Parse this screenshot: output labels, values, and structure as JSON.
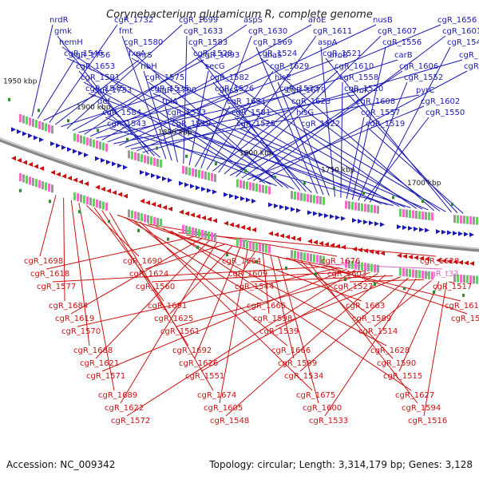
{
  "title": "Corynebacterium glutamicum R, complete genome",
  "footer": {
    "accession": "Accession: NC_009342",
    "summary": "Topology: circular; Length: 3,314,179 bp; Genes: 3,128"
  },
  "scale_labels": [
    "1950 kbp",
    "1900 kbp",
    "1850 kbp",
    "1800 kbp",
    "1750 kbp",
    "1700 kbp"
  ],
  "colors": {
    "forward": "#1a1ab4",
    "reverse": "#cc1111",
    "rna": "#e066c8",
    "backbone": "#888888"
  },
  "upper_genes": [
    "nrdR",
    "cgR_1756",
    "cgR_1733",
    "cgR_1732",
    "thrS",
    "cgR_1700",
    "cgR_1699",
    "cgR_1693",
    "hisS",
    "aspS",
    "alaS",
    "cgR_1679",
    "aroE",
    "aroB",
    "aroK",
    "nusB",
    "carB",
    "pyrC",
    "cgR_1656",
    "cgR_1654",
    "gmk",
    "cgR_1653",
    "def",
    "fmt",
    "ribH",
    "tpiA",
    "cgR_1633",
    "secG",
    "cgR_1631",
    "cgR_1630",
    "cgR_1629",
    "cgR_1623",
    "cgR_1611",
    "cgR_1610",
    "cgR_1608",
    "cgR_1607",
    "cgR_1606",
    "cgR_1602",
    "cgR_1601",
    "cgR_1597",
    "hemH",
    "cgR_1591",
    "cgR_1584",
    "cgR_1580",
    "cgR_1575",
    "cgR_1573",
    "cgR_1583",
    "cgR_1582",
    "cgR_1581",
    "cgR_1569",
    "hisE",
    "hisG",
    "aspA",
    "cgR_1558",
    "cgR_1557",
    "cgR_1556",
    "cgR_1552",
    "cgR_1550",
    "cgR_1549",
    "cgR_1547",
    "cgR_1546",
    "cgR_1545",
    "cgR_1543",
    "fxsA",
    "cgR_1535",
    "cgR_1529",
    "cgR_1528",
    "cgR_1526",
    "cgR_1525",
    "cgR_1524",
    "cgR_1523",
    "cgR_1522",
    "cgR_1521",
    "cgR_1520",
    "cgR_1519"
  ],
  "lower_genes": [
    "cgR_1698",
    "cgR_1684",
    "cgR_1688",
    "cgR_1689",
    "cgR_1690",
    "cgR_1691",
    "cgR_1692",
    "cgR_1674",
    "cgR_1664",
    "cgR_1665",
    "cgR_1666",
    "cgR_1675",
    "cgR_1676",
    "cgR_1663",
    "cgR_1628",
    "cgR_1627",
    "cgR_1620",
    "cgR_1617",
    "cgR_1618",
    "cgR_1619",
    "cgR_1621",
    "cgR_1622",
    "cgR_1624",
    "cgR_1625",
    "cgR_1626",
    "cgR_1605",
    "cgR_1609",
    "cgR_1598",
    "cgR_1599",
    "cgR_1600",
    "cgR_1603",
    "cgR_1589",
    "cgR_1590",
    "cgR_1594",
    "cgR_t33",
    "cgR_1568",
    "cgR_1577",
    "cgR_1570",
    "cgR_1571",
    "cgR_1572",
    "cgR_1560",
    "cgR_1561",
    "cgR_1551",
    "cgR_1548",
    "cgR_1544",
    "cgR_1539",
    "cgR_1534",
    "cgR_1533",
    "cgR_1527",
    "cgR_1514",
    "cgR_1515",
    "cgR_1516",
    "cgR_1517"
  ]
}
